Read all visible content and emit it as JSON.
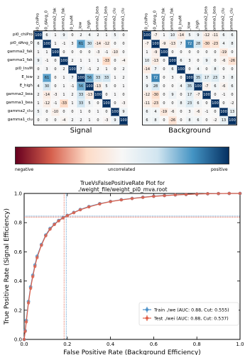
{
  "chart_data": [
    {
      "type": "heatmap",
      "title": "Signal",
      "variables": [
        "pi0_chiPro",
        "pi0_dAng_0",
        "gamma2_fak",
        "gamma1_fak",
        "pi0_InvM",
        "E_low",
        "E_high",
        "gamma2_bea",
        "gamma1_bea",
        "gamma2_clu",
        "gamma1_clu"
      ],
      "values": [
        [
          100,
          6,
          1,
          9,
          0,
          2,
          4,
          2,
          1,
          5,
          0
        ],
        [
          6,
          100,
          1,
          -1,
          3,
          61,
          30,
          -14,
          -12,
          0,
          0
        ],
        [
          1,
          1,
          100,
          0,
          0,
          0,
          0,
          -3,
          -1,
          -10,
          0
        ],
        [
          9,
          -1,
          0,
          100,
          2,
          1,
          1,
          1,
          -33,
          0,
          -4
        ],
        [
          0,
          3,
          0,
          2,
          100,
          7,
          -1,
          2,
          1,
          0,
          2
        ],
        [
          2,
          61,
          0,
          1,
          7,
          100,
          56,
          33,
          33,
          1,
          2
        ],
        [
          4,
          30,
          0,
          1,
          -1,
          56,
          100,
          -13,
          5,
          0,
          1
        ],
        [
          2,
          -14,
          -3,
          1,
          2,
          33,
          -13,
          100,
          0,
          1,
          0
        ],
        [
          1,
          -12,
          -1,
          -33,
          1,
          33,
          5,
          0,
          100,
          0,
          -3
        ],
        [
          5,
          0,
          -10,
          0,
          0,
          1,
          0,
          1,
          0,
          100,
          9
        ],
        [
          0,
          0,
          0,
          -4,
          2,
          2,
          1,
          0,
          -3,
          9,
          100
        ]
      ]
    },
    {
      "type": "heatmap",
      "title": "Background",
      "variables": [
        "pi0_chiPro",
        "pi0_dAng_0",
        "gamma2_fak",
        "gamma1_fak",
        "pi0_InvM",
        "E_low",
        "E_high",
        "gamma2_bea",
        "gamma1_bea",
        "gamma2_clu",
        "gamma1_clu"
      ],
      "values": [
        [
          100,
          -7,
          1,
          10,
          -14,
          5,
          9,
          -12,
          -11,
          6,
          6
        ],
        [
          -7,
          100,
          -9,
          -13,
          7,
          72,
          28,
          -30,
          -23,
          4,
          8
        ],
        [
          1,
          -9,
          100,
          0,
          0,
          0,
          0,
          0,
          0,
          -19,
          0
        ],
        [
          10,
          -13,
          0,
          100,
          6,
          3,
          0,
          9,
          0,
          -6,
          -26
        ],
        [
          -14,
          7,
          0,
          6,
          100,
          0,
          4,
          0,
          8,
          0,
          0
        ],
        [
          5,
          72,
          0,
          3,
          0,
          100,
          35,
          17,
          23,
          3,
          8
        ],
        [
          9,
          28,
          0,
          0,
          4,
          35,
          100,
          -7,
          6,
          -6,
          6
        ],
        [
          -12,
          -30,
          0,
          9,
          0,
          17,
          -7,
          100,
          0,
          -1,
          0
        ],
        [
          -11,
          -23,
          0,
          0,
          8,
          23,
          6,
          0,
          100,
          0,
          -2
        ],
        [
          6,
          4,
          -19,
          -6,
          0,
          3,
          -6,
          -1,
          0,
          100,
          13
        ],
        [
          6,
          8,
          0,
          -26,
          0,
          8,
          6,
          0,
          -2,
          13,
          100
        ]
      ]
    },
    {
      "type": "line",
      "title": "TrueVsFalsePositiveRate Plot for\n./weight_file/weight_pi0_mva.root",
      "xlabel": "False Positive Rate (Background Efficiency)",
      "ylabel": "True Positive Rate (Signal Efficiency)",
      "xlim": [
        0,
        1
      ],
      "ylim": [
        0,
        1
      ],
      "xticks": [
        0.0,
        0.2,
        0.4,
        0.6,
        0.8,
        1.0
      ],
      "yticks": [
        0.0,
        0.2,
        0.4,
        0.6,
        0.8,
        1.0
      ],
      "grid": false,
      "legend": "bottom-right",
      "series": [
        {
          "name": "Train ./we (AUC: 0.88, Cut: 0.555)",
          "color": "#4a90c8",
          "x": [
            0.0,
            0.005,
            0.01,
            0.02,
            0.03,
            0.04,
            0.05,
            0.06,
            0.08,
            0.1,
            0.12,
            0.14,
            0.16,
            0.18,
            0.2,
            0.23,
            0.26,
            0.3,
            0.35,
            0.4,
            0.45,
            0.5,
            0.55,
            0.6,
            0.65,
            0.7,
            0.75,
            0.8,
            0.85,
            0.9,
            0.95,
            1.0
          ],
          "y": [
            0.0,
            0.06,
            0.13,
            0.26,
            0.36,
            0.44,
            0.51,
            0.57,
            0.65,
            0.715,
            0.76,
            0.79,
            0.815,
            0.835,
            0.85,
            0.87,
            0.89,
            0.91,
            0.93,
            0.945,
            0.957,
            0.966,
            0.974,
            0.981,
            0.986,
            0.99,
            0.993,
            0.996,
            0.998,
            0.999,
            1.0,
            1.0
          ]
        },
        {
          "name": "Test ./wei (AUC: 0.88, Cut: 0.537)",
          "color": "#e0604a",
          "x": [
            0.0,
            0.005,
            0.01,
            0.02,
            0.03,
            0.04,
            0.05,
            0.06,
            0.08,
            0.1,
            0.12,
            0.14,
            0.16,
            0.18,
            0.2,
            0.23,
            0.26,
            0.3,
            0.35,
            0.4,
            0.45,
            0.5,
            0.55,
            0.6,
            0.65,
            0.7,
            0.75,
            0.8,
            0.85,
            0.9,
            0.95,
            1.0
          ],
          "y": [
            0.0,
            0.055,
            0.12,
            0.25,
            0.35,
            0.43,
            0.5,
            0.56,
            0.645,
            0.71,
            0.755,
            0.787,
            0.812,
            0.832,
            0.848,
            0.868,
            0.888,
            0.908,
            0.928,
            0.944,
            0.956,
            0.965,
            0.973,
            0.98,
            0.985,
            0.99,
            0.993,
            0.996,
            0.998,
            0.999,
            1.0,
            1.0
          ]
        }
      ],
      "cut_markers": [
        {
          "series": "Train ./we (AUC: 0.88, Cut: 0.555)",
          "x": 0.195,
          "y": 0.845
        },
        {
          "series": "Test ./wei (AUC: 0.88, Cut: 0.537)",
          "x": 0.185,
          "y": 0.838
        }
      ]
    }
  ],
  "colorbar": {
    "labels": [
      "negative",
      "uncorrelated",
      "positive"
    ],
    "colors": [
      "#67001f",
      "#d6604d",
      "#fddbc7",
      "#f7f7f7",
      "#d1e5f0",
      "#4393c3",
      "#053061"
    ]
  }
}
